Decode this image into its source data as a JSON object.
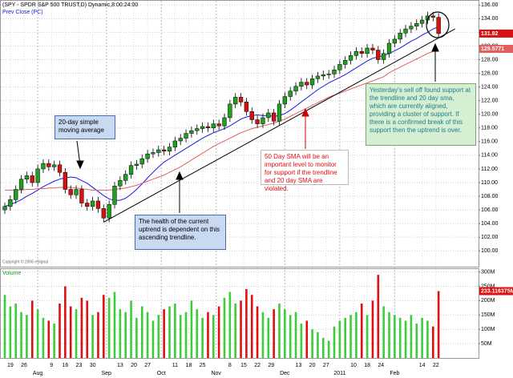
{
  "chart_data": {
    "type": "candlestick",
    "title": "(SPY - SPDR S&P 500 TRUST,D) Dynamic,8:00:24:00",
    "legend_label": "Prev Close (PC)",
    "copyright": "Copyright © 2006 eSignal",
    "up_color": "#1fa01f",
    "down_color": "#d81010",
    "grid": true,
    "ylim": [
      97.8,
      136.5
    ],
    "yticks": [
      {
        "value": 100,
        "label": "100.00"
      },
      {
        "value": 102,
        "label": "102.00"
      },
      {
        "value": 104,
        "label": "104.00"
      },
      {
        "value": 106,
        "label": "106.00"
      },
      {
        "value": 108,
        "label": "108.00"
      },
      {
        "value": 110,
        "label": "110.00"
      },
      {
        "value": 112,
        "label": "112.00"
      },
      {
        "value": 114,
        "label": "114.00"
      },
      {
        "value": 116,
        "label": "116.00"
      },
      {
        "value": 118,
        "label": "118.00"
      },
      {
        "value": 120,
        "label": "120.00"
      },
      {
        "value": 122,
        "label": "122.00"
      },
      {
        "value": 124,
        "label": "124.00"
      },
      {
        "value": 126,
        "label": "126.00"
      },
      {
        "value": 128,
        "label": "128.00"
      },
      {
        "value": 130,
        "label": "130.00"
      },
      {
        "value": 132,
        "label": "132.00"
      },
      {
        "value": 134,
        "label": "134.00"
      },
      {
        "value": 136,
        "label": "136.00"
      }
    ],
    "xticks": [
      {
        "value": 1,
        "label": "19"
      },
      {
        "value": 3.5,
        "label": "26"
      },
      {
        "value": 8.5,
        "label": "9"
      },
      {
        "value": 11,
        "label": "16"
      },
      {
        "value": 13.5,
        "label": "23"
      },
      {
        "value": 16,
        "label": "30"
      },
      {
        "value": 21,
        "label": "13"
      },
      {
        "value": 23.5,
        "label": "20"
      },
      {
        "value": 26,
        "label": "27"
      },
      {
        "value": 31,
        "label": "11"
      },
      {
        "value": 33.5,
        "label": "18"
      },
      {
        "value": 36,
        "label": "25"
      },
      {
        "value": 41,
        "label": "8"
      },
      {
        "value": 43.5,
        "label": "15"
      },
      {
        "value": 46,
        "label": "22"
      },
      {
        "value": 48.5,
        "label": "29"
      },
      {
        "value": 53.5,
        "label": "13"
      },
      {
        "value": 56,
        "label": "20"
      },
      {
        "value": 58.5,
        "label": "27"
      },
      {
        "value": 63.5,
        "label": "10"
      },
      {
        "value": 66,
        "label": "18"
      },
      {
        "value": 68.5,
        "label": "24"
      },
      {
        "value": 76,
        "label": "14"
      },
      {
        "value": 78.5,
        "label": "22"
      }
    ],
    "xmonths": [
      {
        "value": 6,
        "label": "Aug"
      },
      {
        "value": 18.5,
        "label": "Sep"
      },
      {
        "value": 28.5,
        "label": "Oct"
      },
      {
        "value": 38.5,
        "label": "Nov"
      },
      {
        "value": 51,
        "label": "Dec"
      },
      {
        "value": 61,
        "label": "2011"
      },
      {
        "value": 71,
        "label": "Feb"
      }
    ],
    "open": [
      106.0,
      106.5,
      107.5,
      109.0,
      110.5,
      111.0,
      110.0,
      112.0,
      112.8,
      112.3,
      112.6,
      111.5,
      109.0,
      108.2,
      109.0,
      107.0,
      106.5,
      107.3,
      106.2,
      104.8,
      106.8,
      109.5,
      110.3,
      111.2,
      112.5,
      112.7,
      113.5,
      114.2,
      114.4,
      114.8,
      114.6,
      115.2,
      116.1,
      116.5,
      117.2,
      117.6,
      117.9,
      118.2,
      118.0,
      118.6,
      118.3,
      119.5,
      121.5,
      122.5,
      121.8,
      120.4,
      119.2,
      118.6,
      119.5,
      120.2,
      119.0,
      121.5,
      122.6,
      123.4,
      124.1,
      124.7,
      124.3,
      125.2,
      125.6,
      125.8,
      125.9,
      126.5,
      127.3,
      127.9,
      128.6,
      129.2,
      128.9,
      129.7,
      129.4,
      128.0,
      128.9,
      130.4,
      131.0,
      131.9,
      132.5,
      132.9,
      133.3,
      133.8,
      134.4,
      134.2
    ],
    "high": [
      107.1,
      108.1,
      109.6,
      111.1,
      111.6,
      111.6,
      112.6,
      113.4,
      113.4,
      113.2,
      113.2,
      112.1,
      109.6,
      109.6,
      109.6,
      107.6,
      107.9,
      107.9,
      106.8,
      107.4,
      110.1,
      110.9,
      111.8,
      113.1,
      113.3,
      114.1,
      114.8,
      115.0,
      115.4,
      115.4,
      115.8,
      116.7,
      117.1,
      117.8,
      118.2,
      118.5,
      118.8,
      118.8,
      119.2,
      119.2,
      120.1,
      122.1,
      123.1,
      123.1,
      122.4,
      121.0,
      119.8,
      120.1,
      120.8,
      120.8,
      122.1,
      123.2,
      124.0,
      124.7,
      125.3,
      125.3,
      125.8,
      126.2,
      126.4,
      126.5,
      127.1,
      127.9,
      128.5,
      129.2,
      129.8,
      129.8,
      130.3,
      130.3,
      130.0,
      129.5,
      131.0,
      131.6,
      132.5,
      133.1,
      133.5,
      133.9,
      134.4,
      135.0,
      135.0,
      134.8
    ],
    "low": [
      105.4,
      105.9,
      106.9,
      108.4,
      109.9,
      109.4,
      109.4,
      111.4,
      111.7,
      111.7,
      110.9,
      108.4,
      107.6,
      107.6,
      106.4,
      105.9,
      105.9,
      105.6,
      104.2,
      104.2,
      106.2,
      108.9,
      109.7,
      110.6,
      111.9,
      112.1,
      112.9,
      113.6,
      113.8,
      114.0,
      114.0,
      114.6,
      115.5,
      115.9,
      116.6,
      117.0,
      117.3,
      117.4,
      117.4,
      117.7,
      117.7,
      118.9,
      120.9,
      121.2,
      119.8,
      118.6,
      118.0,
      118.0,
      118.9,
      118.4,
      118.4,
      120.9,
      122.0,
      122.8,
      123.5,
      123.7,
      123.7,
      124.6,
      125.0,
      125.2,
      125.3,
      125.9,
      126.7,
      127.3,
      128.0,
      128.3,
      128.3,
      128.8,
      127.4,
      127.4,
      128.3,
      129.8,
      130.4,
      131.3,
      131.9,
      132.3,
      132.7,
      133.2,
      133.6,
      131.2
    ],
    "close": [
      106.5,
      107.5,
      109.0,
      110.5,
      111.0,
      110.0,
      112.0,
      112.8,
      112.3,
      112.6,
      111.5,
      109.0,
      108.2,
      109.0,
      107.0,
      106.5,
      107.3,
      106.2,
      104.8,
      106.8,
      109.5,
      110.3,
      111.2,
      112.5,
      112.7,
      113.5,
      114.2,
      114.4,
      114.8,
      114.6,
      115.2,
      116.1,
      116.5,
      117.2,
      117.6,
      117.9,
      118.2,
      118.0,
      118.6,
      118.3,
      119.5,
      121.5,
      122.5,
      121.8,
      120.4,
      119.2,
      118.6,
      119.5,
      120.2,
      119.0,
      121.5,
      122.6,
      123.4,
      124.1,
      124.7,
      124.3,
      125.2,
      125.6,
      125.8,
      125.9,
      126.5,
      127.3,
      127.9,
      128.6,
      129.2,
      128.9,
      129.7,
      129.4,
      128.0,
      128.9,
      130.4,
      131.0,
      131.9,
      132.5,
      132.9,
      133.3,
      133.8,
      134.4,
      134.2,
      131.82
    ],
    "sma": [
      {
        "color": "#1a1ae0",
        "values": [
          106.5,
          106.8,
          107.1,
          107.5,
          108.0,
          108.4,
          108.9,
          109.4,
          109.8,
          110.2,
          110.5,
          110.7,
          110.8,
          110.7,
          110.3,
          109.9,
          109.3,
          108.7,
          108.1,
          107.6,
          107.4,
          107.4,
          107.7,
          108.3,
          109.0,
          109.8,
          110.7,
          111.5,
          112.3,
          113.0,
          113.5,
          114.0,
          114.5,
          115.0,
          115.5,
          116.0,
          116.5,
          116.9,
          117.3,
          117.6,
          117.9,
          118.3,
          118.8,
          119.3,
          119.6,
          119.8,
          119.9,
          119.8,
          119.8,
          119.7,
          119.8,
          120.1,
          120.6,
          121.2,
          121.8,
          122.4,
          123.0,
          123.6,
          124.1,
          124.6,
          125.0,
          125.4,
          125.8,
          126.3,
          126.8,
          127.3,
          127.8,
          128.2,
          128.4,
          128.6,
          128.9,
          129.3,
          129.7,
          130.2,
          130.7,
          131.1,
          131.6,
          132.0,
          132.5,
          132.8
        ]
      },
      {
        "color": "#e06060",
        "values": [
          108.9,
          108.9,
          108.9,
          108.9,
          109.0,
          109.0,
          109.1,
          109.1,
          109.2,
          109.2,
          109.3,
          109.3,
          109.3,
          109.2,
          109.1,
          109.0,
          108.9,
          108.9,
          108.9,
          108.9,
          109.0,
          109.1,
          109.2,
          109.4,
          109.6,
          109.9,
          110.2,
          110.5,
          110.8,
          111.1,
          111.5,
          111.9,
          112.3,
          112.8,
          113.3,
          113.8,
          114.3,
          114.8,
          115.3,
          115.7,
          116.1,
          116.5,
          116.9,
          117.3,
          117.6,
          117.9,
          118.1,
          118.3,
          118.5,
          118.7,
          119.0,
          119.3,
          119.7,
          120.1,
          120.5,
          120.9,
          121.3,
          121.7,
          122.1,
          122.5,
          122.8,
          123.1,
          123.4,
          123.7,
          124.0,
          124.3,
          124.6,
          124.9,
          125.2,
          125.5,
          126.1,
          126.5,
          126.9,
          127.3,
          127.7,
          128.1,
          128.5,
          128.9,
          129.2,
          129.5771
        ]
      }
    ],
    "trendline": {
      "color": "#000000",
      "x": [
        18,
        82
      ],
      "values": [
        104.2,
        132.5
      ]
    },
    "volume": {
      "title": "Volume",
      "up_color": "#3ccc3c",
      "down_color": "#dd1111",
      "ylim": [
        0,
        310
      ],
      "yticks": [
        {
          "value": 50,
          "label": "50M"
        },
        {
          "value": 100,
          "label": "100M"
        },
        {
          "value": 150,
          "label": "150M"
        },
        {
          "value": 200,
          "label": "200M"
        },
        {
          "value": 250,
          "label": "250M"
        },
        {
          "value": 300,
          "label": "300M"
        }
      ],
      "values": [
        220,
        180,
        190,
        160,
        150,
        200,
        170,
        140,
        130,
        120,
        190,
        250,
        180,
        170,
        210,
        200,
        150,
        160,
        220,
        210,
        230,
        170,
        160,
        200,
        140,
        180,
        160,
        130,
        150,
        170,
        180,
        190,
        150,
        160,
        200,
        170,
        140,
        160,
        150,
        180,
        210,
        230,
        190,
        200,
        240,
        220,
        180,
        160,
        140,
        170,
        190,
        170,
        150,
        160,
        120,
        130,
        100,
        90,
        70,
        60,
        110,
        130,
        140,
        150,
        160,
        190,
        150,
        200,
        290,
        180,
        160,
        150,
        140,
        130,
        150,
        120,
        140,
        130,
        110,
        233.116375
      ],
      "value_labels": [
        null,
        null,
        null,
        null,
        null,
        null,
        null,
        null,
        null,
        null,
        null,
        null,
        null,
        null,
        null,
        null,
        null,
        null,
        null,
        null,
        null,
        null,
        null,
        null,
        null,
        null,
        null,
        null,
        null,
        null,
        null,
        null,
        null,
        null,
        null,
        null,
        null,
        null,
        null,
        null,
        null,
        null,
        null,
        null,
        null,
        null,
        null,
        null,
        null,
        null,
        null,
        null,
        null,
        null,
        null,
        null,
        null,
        null,
        null,
        null,
        null,
        null,
        null,
        null,
        null,
        null,
        null,
        null,
        null,
        null,
        null,
        null,
        null,
        null,
        null,
        null,
        null,
        null,
        null,
        "233.116375M"
      ]
    },
    "annotations": [
      "20-day simple moving average",
      "The health of the current uptrend is dependent on this ascending trendline.",
      "50 Day SMA will be an important level to monitor for support if the trendline and 20 day SMA are violated.",
      "Yesterday's sell off found support at the trendline and 20 day sma, which are currently aligned, providing a cluster of support. If there is a confirmed break of this support then the uptrend is over."
    ]
  }
}
